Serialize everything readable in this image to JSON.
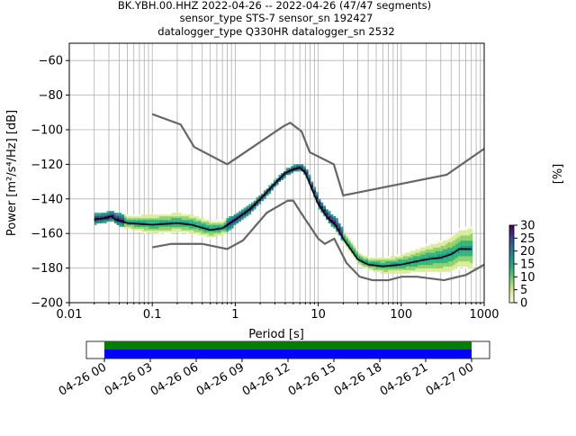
{
  "chart_data": {
    "type": "heatmap",
    "title_lines": [
      "BK.YBH.00.HHZ   2022-04-26 -- 2022-04-26  (47/47 segments)",
      "sensor_type STS-7 sensor_sn 192427",
      "datalogger_type Q330HR datalogger_sn 2532"
    ],
    "xlabel": "Period [s]",
    "ylabel": "Power [m²/s⁴/Hz] [dB]",
    "xscale": "log",
    "xlim": [
      0.01,
      1000
    ],
    "ylim": [
      -200,
      -50
    ],
    "x_ticks": [
      {
        "value": 0.01,
        "label": "0.01"
      },
      {
        "value": 0.1,
        "label": "0.1"
      },
      {
        "value": 1,
        "label": "1"
      },
      {
        "value": 10,
        "label": "10"
      },
      {
        "value": 100,
        "label": "100"
      },
      {
        "value": 1000,
        "label": "1000"
      }
    ],
    "y_ticks": [
      {
        "value": -60,
        "label": "−60"
      },
      {
        "value": -80,
        "label": "−80"
      },
      {
        "value": -100,
        "label": "−100"
      },
      {
        "value": -120,
        "label": "−120"
      },
      {
        "value": -140,
        "label": "−140"
      },
      {
        "value": -160,
        "label": "−160"
      },
      {
        "value": -180,
        "label": "−180"
      },
      {
        "value": -200,
        "label": "−200"
      }
    ],
    "grid": true,
    "series": [
      {
        "name": "NHNM",
        "color": "#666666",
        "points": [
          [
            0.1,
            -91
          ],
          [
            0.22,
            -97
          ],
          [
            0.32,
            -110
          ],
          [
            0.8,
            -120
          ],
          [
            3.8,
            -98
          ],
          [
            4.6,
            -96
          ],
          [
            6.3,
            -101
          ],
          [
            7.9,
            -113
          ],
          [
            15.4,
            -120
          ],
          [
            20,
            -138
          ],
          [
            354,
            -126
          ],
          [
            1000,
            -111
          ]
        ]
      },
      {
        "name": "NLNM",
        "color": "#666666",
        "points": [
          [
            0.1,
            -168
          ],
          [
            0.17,
            -166
          ],
          [
            0.4,
            -166
          ],
          [
            0.8,
            -169
          ],
          [
            1.24,
            -164
          ],
          [
            2.4,
            -148
          ],
          [
            4.3,
            -141
          ],
          [
            5,
            -141
          ],
          [
            6,
            -147
          ],
          [
            10,
            -163
          ],
          [
            12,
            -166
          ],
          [
            15.6,
            -163
          ],
          [
            21.9,
            -177
          ],
          [
            31.6,
            -185
          ],
          [
            45,
            -187
          ],
          [
            70,
            -187
          ],
          [
            101,
            -185
          ],
          [
            154,
            -185
          ],
          [
            328,
            -187
          ],
          [
            600,
            -184
          ],
          [
            1000,
            -178
          ]
        ]
      },
      {
        "name": "mode",
        "color": "#000000",
        "points": [
          [
            0.02,
            -152
          ],
          [
            0.028,
            -151
          ],
          [
            0.032,
            -150
          ],
          [
            0.036,
            -152
          ],
          [
            0.05,
            -154
          ],
          [
            0.1,
            -155
          ],
          [
            0.2,
            -154
          ],
          [
            0.3,
            -155
          ],
          [
            0.5,
            -158
          ],
          [
            0.7,
            -157
          ],
          [
            1,
            -152
          ],
          [
            1.5,
            -146
          ],
          [
            2,
            -140
          ],
          [
            3,
            -131
          ],
          [
            4,
            -125
          ],
          [
            5,
            -123
          ],
          [
            6,
            -122
          ],
          [
            7,
            -125
          ],
          [
            8,
            -132
          ],
          [
            10,
            -143
          ],
          [
            13,
            -151
          ],
          [
            16,
            -155
          ],
          [
            20,
            -163
          ],
          [
            30,
            -175
          ],
          [
            40,
            -178
          ],
          [
            60,
            -179
          ],
          [
            100,
            -178
          ],
          [
            200,
            -175
          ],
          [
            300,
            -174
          ],
          [
            400,
            -172
          ],
          [
            500,
            -169
          ],
          [
            700,
            -169
          ]
        ]
      }
    ],
    "histogram_spread": [
      [
        0.03,
        3
      ],
      [
        0.1,
        6
      ],
      [
        0.3,
        6
      ],
      [
        0.6,
        5
      ],
      [
        1,
        3
      ],
      [
        3,
        2
      ],
      [
        6,
        2
      ],
      [
        10,
        3
      ],
      [
        20,
        4
      ],
      [
        40,
        4
      ],
      [
        100,
        6
      ],
      [
        300,
        10
      ],
      [
        700,
        13
      ]
    ],
    "colorbar": {
      "label": "[%]",
      "range": [
        0,
        30
      ],
      "ticks": [
        "0",
        "5",
        "10",
        "15",
        "20",
        "25",
        "30"
      ],
      "colors": [
        "#fbfbe8",
        "#d9ec9a",
        "#8fd16a",
        "#2fb47c",
        "#21918c",
        "#2c6f8e",
        "#3b3b8a",
        "#440154"
      ]
    },
    "timeline": {
      "ticks": [
        "04-26 00",
        "04-26 03",
        "04-26 06",
        "04-26 09",
        "04-26 12",
        "04-26 15",
        "04-26 18",
        "04-26 21",
        "04-27 00"
      ],
      "coverage_start_fraction": 0.0,
      "coverage_end_fraction": 1.0,
      "colors": {
        "data": "#008000",
        "psd": "#0000ff"
      }
    }
  }
}
